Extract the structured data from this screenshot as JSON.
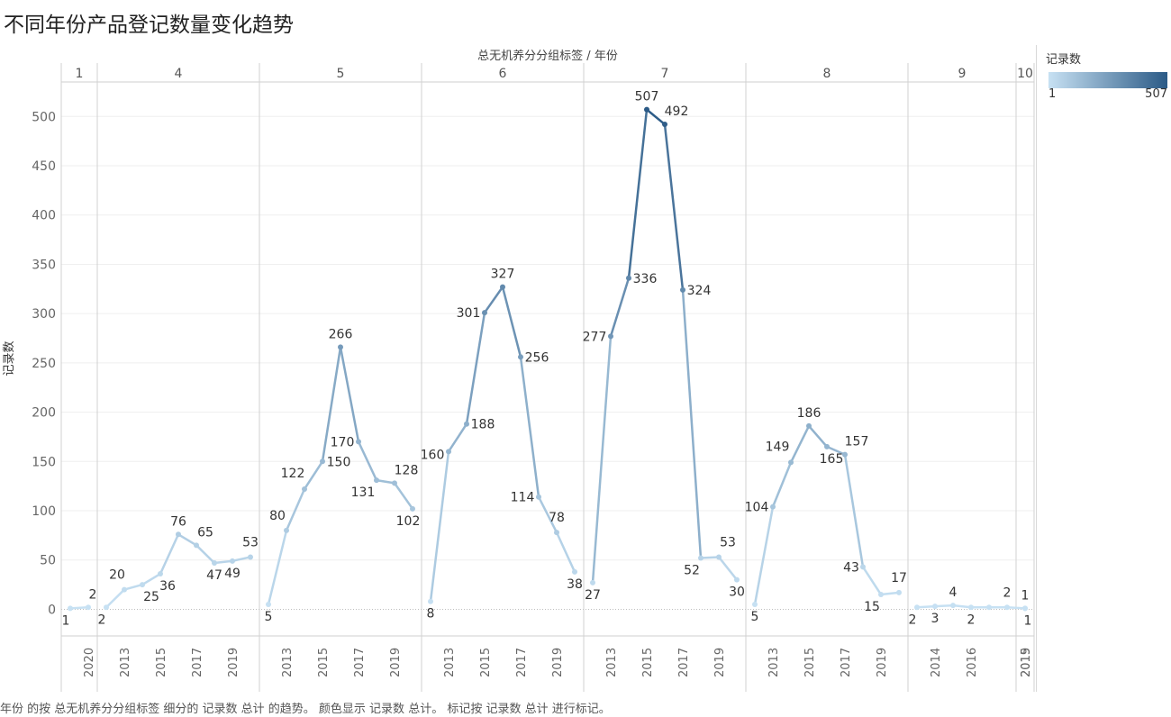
{
  "title": "不同年份产品登记数量变化趋势",
  "footnote": "年份 的按 总无机养分分组标签 细分的 记录数 总计 的趋势。 颜色显示 记录数 总计。 标记按 记录数 总计 进行标记。",
  "legend": {
    "title": "记录数",
    "min_label": "1",
    "max_label": "507",
    "color_low": "#c7e1f3",
    "color_high": "#2b5a86"
  },
  "chart_data": {
    "type": "line",
    "column_header": "总无机养分分组标签 / 年份",
    "ylabel": "记录数",
    "ylim": [
      -27,
      535
    ],
    "yticks": [
      0,
      50,
      100,
      150,
      200,
      250,
      300,
      350,
      400,
      450,
      500
    ],
    "panels": [
      {
        "label": "1",
        "x": [
          2019,
          2020
        ],
        "values": [
          1,
          2
        ],
        "xtick_labels": [
          "2020"
        ]
      },
      {
        "label": "4",
        "x": [
          2012,
          2013,
          2014,
          2015,
          2016,
          2017,
          2018,
          2019,
          2020
        ],
        "values": [
          2,
          20,
          25,
          36,
          76,
          65,
          47,
          49,
          53
        ],
        "xtick_labels": [
          "2013",
          "2015",
          "2017",
          "2019"
        ]
      },
      {
        "label": "5",
        "x": [
          2012,
          2013,
          2014,
          2015,
          2016,
          2017,
          2018,
          2019,
          2020
        ],
        "values": [
          5,
          80,
          122,
          150,
          266,
          170,
          131,
          128,
          102
        ],
        "xtick_labels": [
          "2013",
          "2015",
          "2017",
          "2019"
        ]
      },
      {
        "label": "6",
        "x": [
          2012,
          2013,
          2014,
          2015,
          2016,
          2017,
          2018,
          2019,
          2020
        ],
        "values": [
          8,
          160,
          188,
          301,
          327,
          256,
          114,
          78,
          38
        ],
        "xtick_labels": [
          "2013",
          "2015",
          "2017",
          "2019"
        ]
      },
      {
        "label": "7",
        "x": [
          2012,
          2013,
          2014,
          2015,
          2016,
          2017,
          2018,
          2019,
          2020
        ],
        "values": [
          27,
          277,
          336,
          507,
          492,
          324,
          52,
          53,
          30
        ],
        "xtick_labels": [
          "2013",
          "2015",
          "2017",
          "2019"
        ]
      },
      {
        "label": "8",
        "x": [
          2012,
          2013,
          2014,
          2015,
          2016,
          2017,
          2018,
          2019,
          2020
        ],
        "values": [
          5,
          104,
          149,
          186,
          165,
          157,
          43,
          15,
          17
        ],
        "xtick_labels": [
          "2013",
          "2015",
          "2017",
          "2019"
        ]
      },
      {
        "label": "9",
        "x": [
          2013,
          2014,
          2015,
          2016,
          2017,
          2018,
          2019
        ],
        "values": [
          2,
          3,
          4,
          2,
          2,
          2,
          1
        ],
        "xtick_labels": [
          "2014",
          "2016",
          "2019"
        ]
      },
      {
        "label": "10",
        "x": [
          2015
        ],
        "values": [
          1
        ],
        "xtick_labels": [
          "2015"
        ]
      }
    ],
    "data_labels": {
      "1": [
        "1",
        "2"
      ],
      "4": [
        "2",
        "20",
        "25",
        "36",
        "76",
        "65",
        "47",
        "49",
        "53"
      ],
      "5": [
        "5",
        "80",
        "122",
        "150",
        "266",
        "170",
        "131",
        "128",
        "102"
      ],
      "6": [
        "8",
        "160",
        "188",
        "301",
        "327",
        "256",
        "114",
        "78",
        "38"
      ],
      "7": [
        "27",
        "277",
        "336",
        "507",
        "492",
        "324",
        "52",
        "53",
        "30"
      ],
      "8": [
        "5",
        "104",
        "149",
        "186",
        "165",
        "157",
        "43",
        "15",
        "17"
      ],
      "9": [
        "2",
        "3",
        "4",
        "2",
        "",
        "2",
        "1"
      ],
      "10": [
        "1"
      ]
    }
  }
}
